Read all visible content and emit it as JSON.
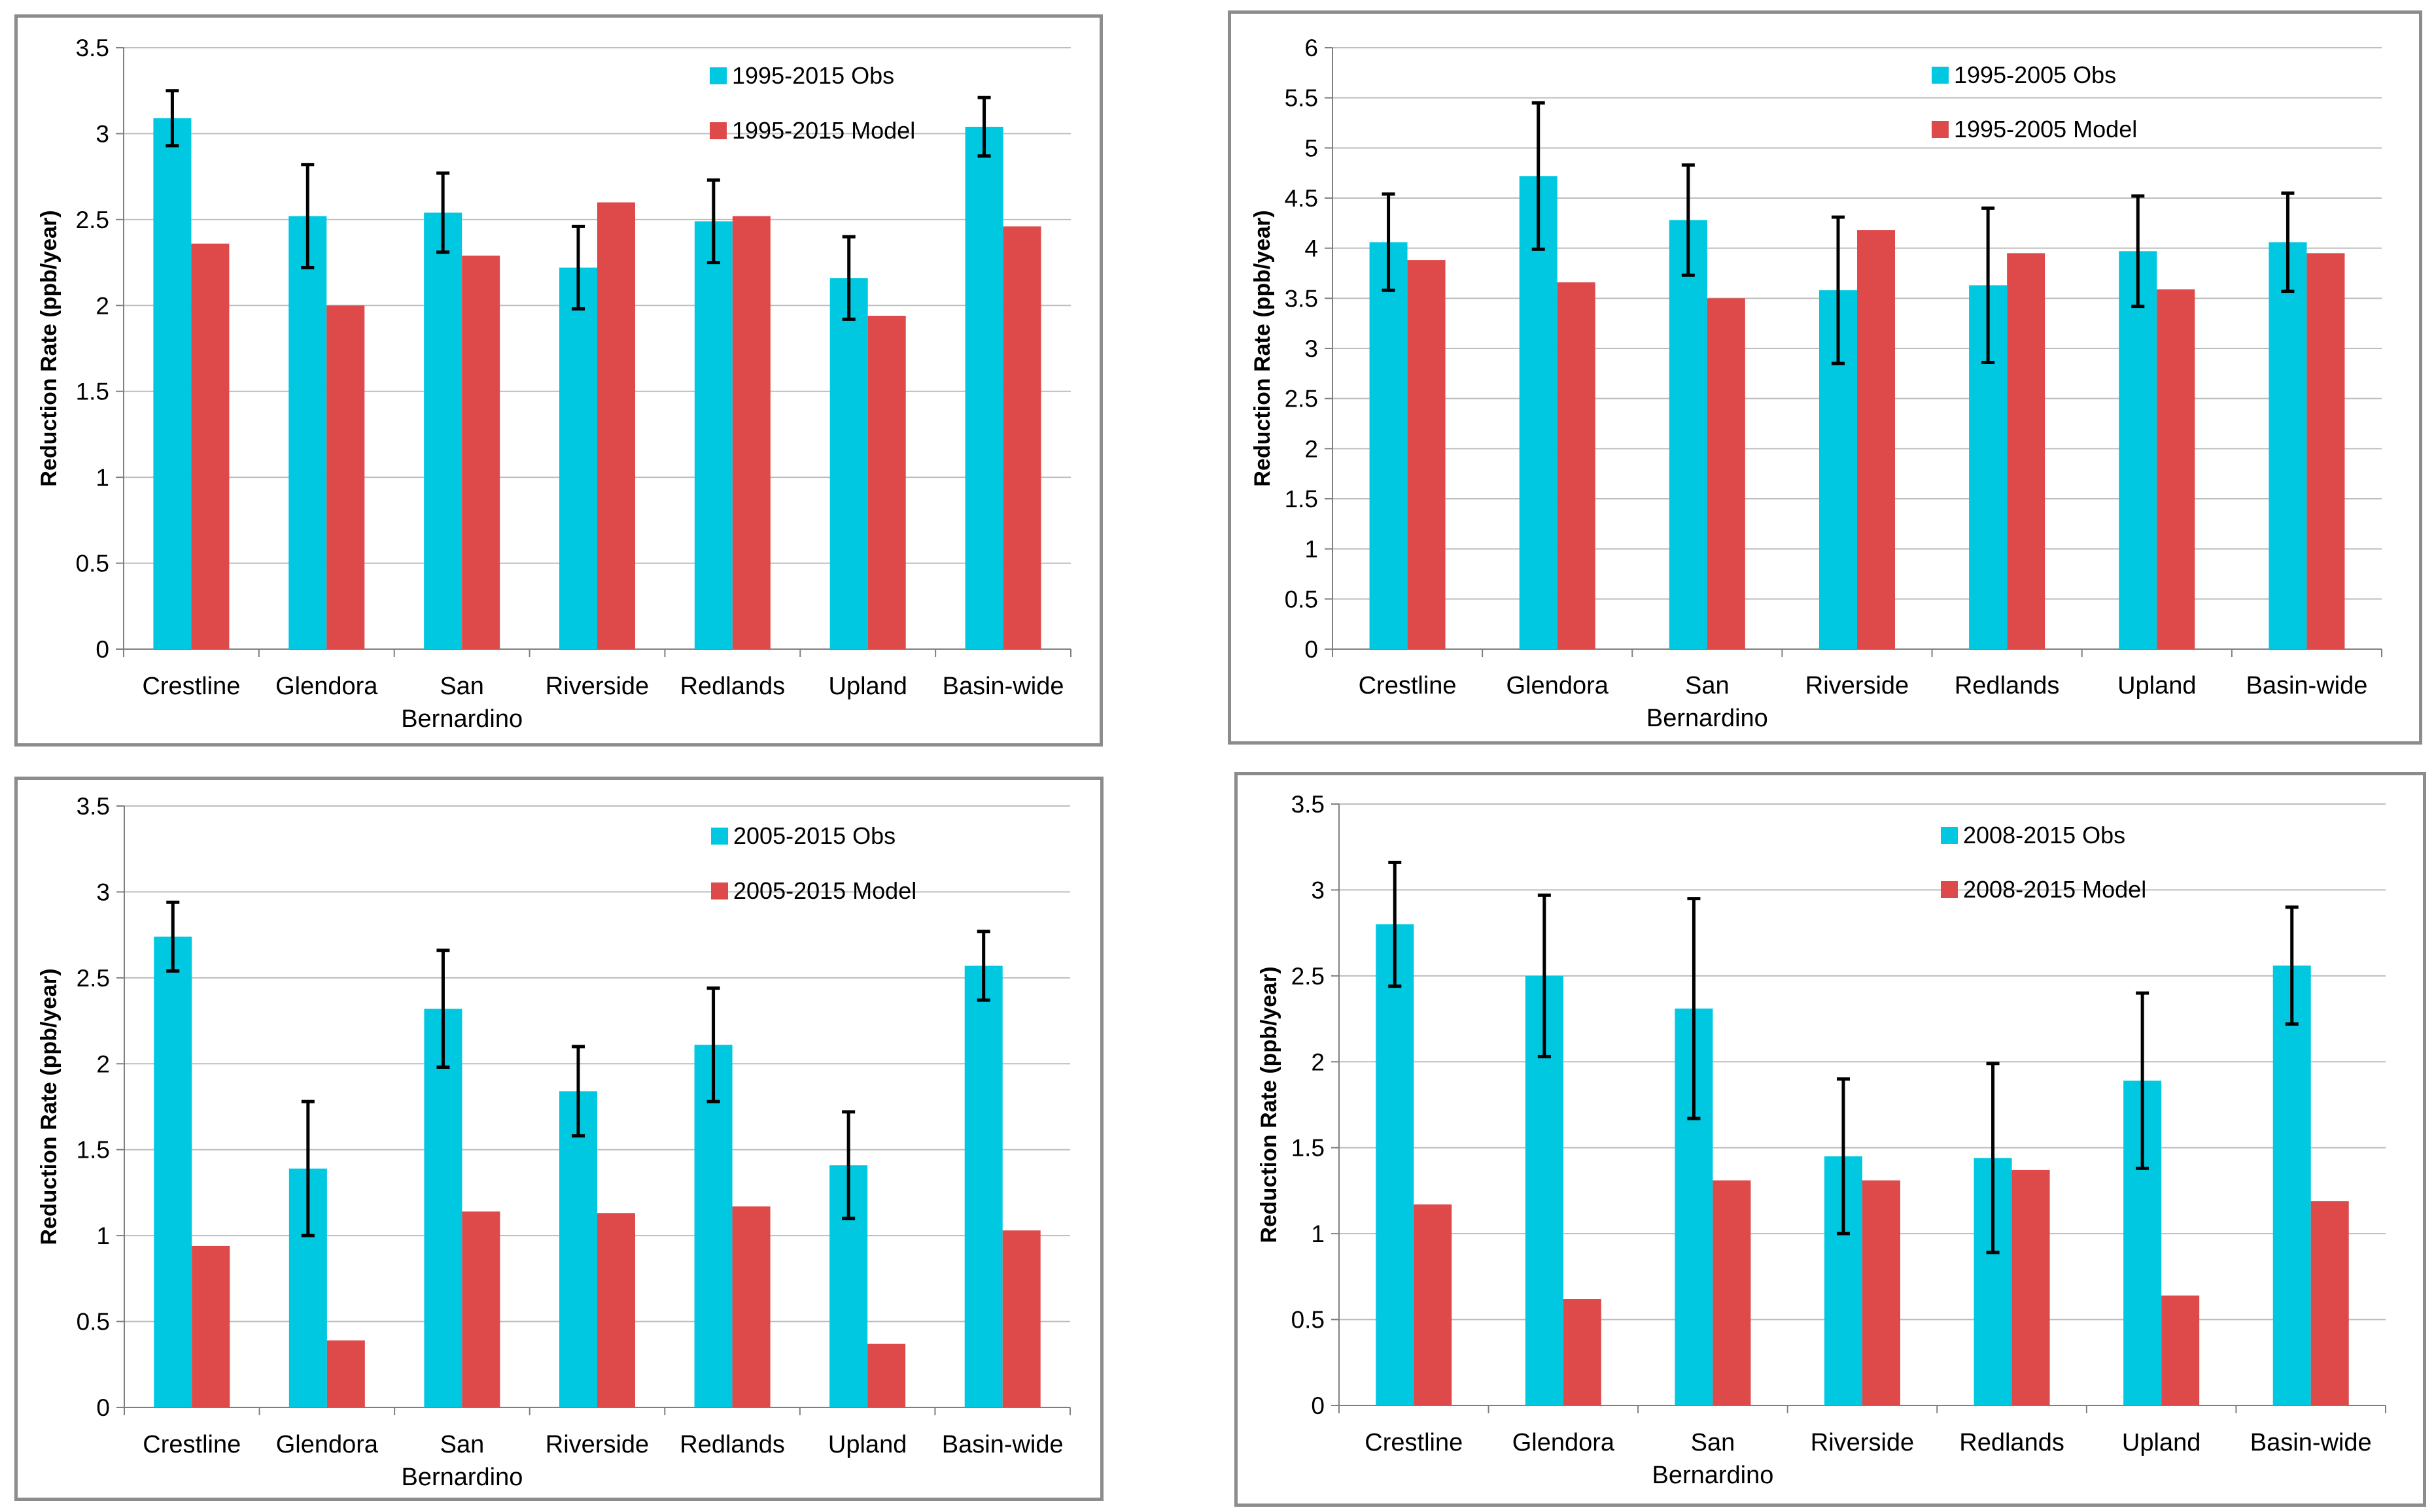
{
  "colors": {
    "obs": "#00C8E0",
    "model": "#DE4A4A",
    "grid": "#bdbdbd",
    "axis": "#7f7f7f",
    "errorbar": "#000000"
  },
  "chart_data": [
    {
      "type": "bar",
      "ylabel": "Reduction Rate (ppb/year)",
      "ylim": [
        0,
        3.5
      ],
      "ystep": 0.5,
      "yticks": [
        "0",
        "0.5",
        "1",
        "1.5",
        "2",
        "2.5",
        "3",
        "3.5"
      ],
      "categories": [
        "Crestline",
        "Glendora",
        "San Bernardino",
        "Riverside",
        "Redlands",
        "Upland",
        "Basin-wide"
      ],
      "category_lines": [
        [
          "Crestline"
        ],
        [
          "Glendora"
        ],
        [
          "San",
          "Bernardino"
        ],
        [
          "Riverside"
        ],
        [
          "Redlands"
        ],
        [
          "Upland"
        ],
        [
          "Basin-wide"
        ]
      ],
      "legend_position": "top-right",
      "series": [
        {
          "name": "1995-2015 Obs",
          "values": [
            3.09,
            2.52,
            2.54,
            2.22,
            2.49,
            2.16,
            3.04
          ],
          "error": [
            0.16,
            0.3,
            0.23,
            0.24,
            0.24,
            0.24,
            0.17
          ]
        },
        {
          "name": "1995-2015 Model",
          "values": [
            2.36,
            2.0,
            2.29,
            2.6,
            2.52,
            1.94,
            2.46
          ]
        }
      ]
    },
    {
      "type": "bar",
      "ylabel": "Reduction Rate (ppb/year)",
      "ylim": [
        0,
        6
      ],
      "ystep": 0.5,
      "yticks": [
        "0",
        "0.5",
        "1",
        "1.5",
        "2",
        "2.5",
        "3",
        "3.5",
        "4",
        "4.5",
        "5",
        "5.5",
        "6"
      ],
      "categories": [
        "Crestline",
        "Glendora",
        "San Bernardino",
        "Riverside",
        "Redlands",
        "Upland",
        "Basin-wide"
      ],
      "category_lines": [
        [
          "Crestline"
        ],
        [
          "Glendora"
        ],
        [
          "San",
          "Bernardino"
        ],
        [
          "Riverside"
        ],
        [
          "Redlands"
        ],
        [
          "Upland"
        ],
        [
          "Basin-wide"
        ]
      ],
      "legend_position": "top-right",
      "series": [
        {
          "name": "1995-2005 Obs",
          "values": [
            4.06,
            4.72,
            4.28,
            3.58,
            3.63,
            3.97,
            4.06
          ],
          "error": [
            0.48,
            0.73,
            0.55,
            0.73,
            0.77,
            0.55,
            0.49
          ]
        },
        {
          "name": "1995-2005 Model",
          "values": [
            3.88,
            3.66,
            3.5,
            4.18,
            3.95,
            3.59,
            3.95
          ]
        }
      ]
    },
    {
      "type": "bar",
      "ylabel": "Reduction Rate (ppb/year)",
      "ylim": [
        0,
        3.5
      ],
      "ystep": 0.5,
      "yticks": [
        "0",
        "0.5",
        "1",
        "1.5",
        "2",
        "2.5",
        "3",
        "3.5"
      ],
      "categories": [
        "Crestline",
        "Glendora",
        "San Bernardino",
        "Riverside",
        "Redlands",
        "Upland",
        "Basin-wide"
      ],
      "category_lines": [
        [
          "Crestline"
        ],
        [
          "Glendora"
        ],
        [
          "San",
          "Bernardino"
        ],
        [
          "Riverside"
        ],
        [
          "Redlands"
        ],
        [
          "Upland"
        ],
        [
          "Basin-wide"
        ]
      ],
      "legend_position": "top-right",
      "series": [
        {
          "name": "2005-2015 Obs",
          "values": [
            2.74,
            1.39,
            2.32,
            1.84,
            2.11,
            1.41,
            2.57
          ],
          "error": [
            0.2,
            0.39,
            0.34,
            0.26,
            0.33,
            0.31,
            0.2
          ]
        },
        {
          "name": "2005-2015 Model",
          "values": [
            0.94,
            0.39,
            1.14,
            1.13,
            1.17,
            0.37,
            1.03
          ]
        }
      ]
    },
    {
      "type": "bar",
      "ylabel": "Reduction Rate (ppb/year)",
      "ylim": [
        0,
        3.5
      ],
      "ystep": 0.5,
      "yticks": [
        "0",
        "0.5",
        "1",
        "1.5",
        "2",
        "2.5",
        "3",
        "3.5"
      ],
      "categories": [
        "Crestline",
        "Glendora",
        "San Bernardino",
        "Riverside",
        "Redlands",
        "Upland",
        "Basin-wide"
      ],
      "category_lines": [
        [
          "Crestline"
        ],
        [
          "Glendora"
        ],
        [
          "San",
          "Bernardino"
        ],
        [
          "Riverside"
        ],
        [
          "Redlands"
        ],
        [
          "Upland"
        ],
        [
          "Basin-wide"
        ]
      ],
      "legend_position": "top-right",
      "series": [
        {
          "name": "2008-2015 Obs",
          "values": [
            2.8,
            2.5,
            2.31,
            1.45,
            1.44,
            1.89,
            2.56
          ],
          "error": [
            0.36,
            0.47,
            0.64,
            0.45,
            0.55,
            0.51,
            0.34
          ]
        },
        {
          "name": "2008-2015 Model",
          "values": [
            1.17,
            0.62,
            1.31,
            1.31,
            1.37,
            0.64,
            1.19
          ]
        }
      ]
    }
  ]
}
